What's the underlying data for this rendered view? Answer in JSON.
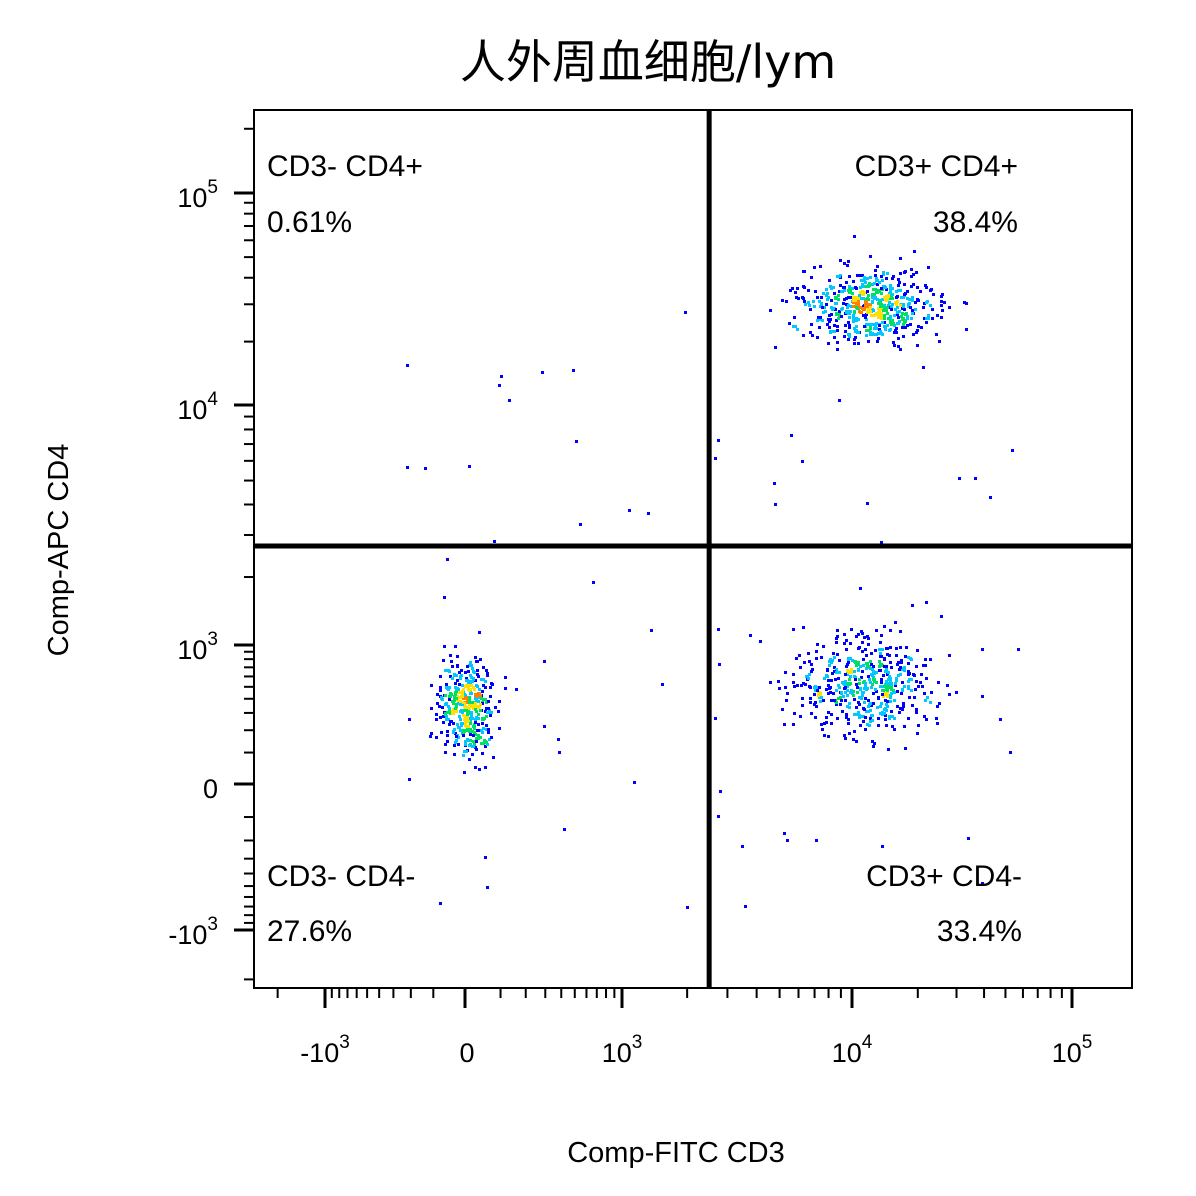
{
  "chart_data": {
    "type": "scatter",
    "title": "人外周血细胞/lym",
    "xlabel": "Comp-FITC  CD3",
    "ylabel": "Comp-APC  CD4",
    "x_scale": "biexponential",
    "y_scale": "biexponential",
    "x_ticks": [
      {
        "base": "-10",
        "exp": "3",
        "value": -1000
      },
      {
        "base": "0",
        "exp": "",
        "value": 0
      },
      {
        "base": "10",
        "exp": "3",
        "value": 1000
      },
      {
        "base": "10",
        "exp": "4",
        "value": 10000
      },
      {
        "base": "10",
        "exp": "5",
        "value": 100000
      }
    ],
    "y_ticks": [
      {
        "base": "-10",
        "exp": "3",
        "value": -1000
      },
      {
        "base": "0",
        "exp": "",
        "value": 0
      },
      {
        "base": "10",
        "exp": "3",
        "value": 1000
      },
      {
        "base": "10",
        "exp": "4",
        "value": 10000
      },
      {
        "base": "10",
        "exp": "5",
        "value": 100000
      }
    ],
    "quadrant_gate": {
      "x": 2500,
      "y": 2700
    },
    "quadrants": [
      {
        "label": "CD3- CD4+",
        "percent": "0.61%",
        "position": "top-left"
      },
      {
        "label": "CD3+ CD4+",
        "percent": "38.4%",
        "position": "top-right"
      },
      {
        "label": "CD3- CD4-",
        "percent": "27.6%",
        "position": "bottom-left"
      },
      {
        "label": "CD3+ CD4-",
        "percent": "33.4%",
        "position": "bottom-right"
      }
    ],
    "populations": [
      {
        "x": 0,
        "y": 350,
        "count": 420
      },
      {
        "x": 12000,
        "y": 30000,
        "count": 580
      },
      {
        "x": 11500,
        "y": 520,
        "count": 520
      }
    ],
    "colors": [
      "#0000ff",
      "#00c8ff",
      "#00e060",
      "#ffe000",
      "#ff8000",
      "#ff0000"
    ],
    "grid": false
  }
}
